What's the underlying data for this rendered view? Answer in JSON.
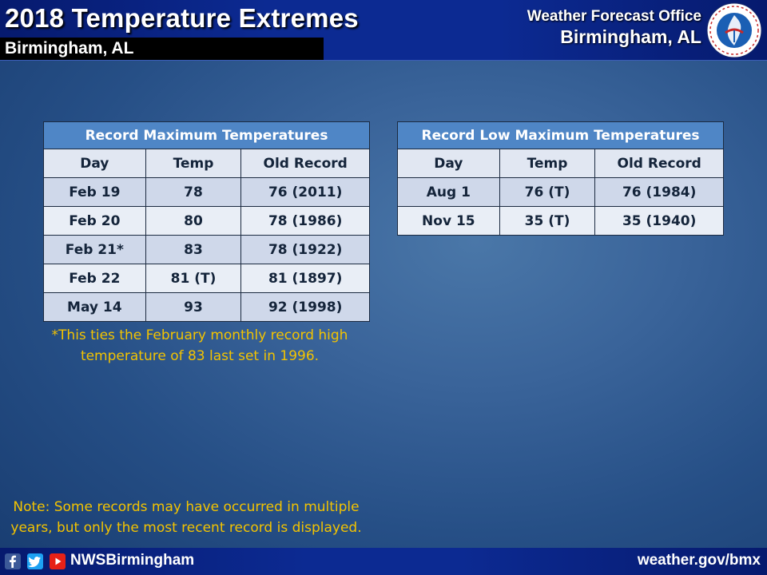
{
  "header": {
    "title": "2018 Temperature Extremes",
    "location": "Birmingham, AL",
    "office_line1": "Weather Forecast Office",
    "office_line2": "Birmingham, AL",
    "logo_icon": "nws-logo-icon",
    "logo_text": "NATIONAL WEATHER SERVICE"
  },
  "record_max": {
    "title": "Record Maximum Temperatures",
    "columns": [
      "Day",
      "Temp",
      "Old Record"
    ],
    "rows": [
      [
        "Feb 19",
        "78",
        "76 (2011)"
      ],
      [
        "Feb 20",
        "80",
        "78 (1986)"
      ],
      [
        "Feb 21*",
        "83",
        "78 (1922)"
      ],
      [
        "Feb 22",
        "81 (T)",
        "81 (1897)"
      ],
      [
        "May 14",
        "93",
        "92 (1998)"
      ]
    ],
    "footnote_line1": "*This ties the February monthly record high",
    "footnote_line2": "temperature of 83 last set in 1996."
  },
  "record_low_max": {
    "title": "Record Low Maximum Temperatures",
    "columns": [
      "Day",
      "Temp",
      "Old Record"
    ],
    "rows": [
      [
        "Aug 1",
        "76 (T)",
        "76 (1984)"
      ],
      [
        "Nov 15",
        "35 (T)",
        "35 (1940)"
      ]
    ]
  },
  "note": {
    "line1": "Note: Some records may have occurred in multiple",
    "line2": "years, but only the most recent record is displayed."
  },
  "footer": {
    "icons": [
      "facebook-icon",
      "twitter-icon",
      "youtube-icon"
    ],
    "handle": "NWSBirmingham",
    "website": "weather.gov/bmx"
  },
  "colors": {
    "title_bar": "#4f86c6",
    "header_row": "#e1e7f2",
    "row_shade": "#cfd8ea",
    "row_light": "#e9eef6",
    "note_text": "#f3c300",
    "banner": "#0c2a92"
  }
}
